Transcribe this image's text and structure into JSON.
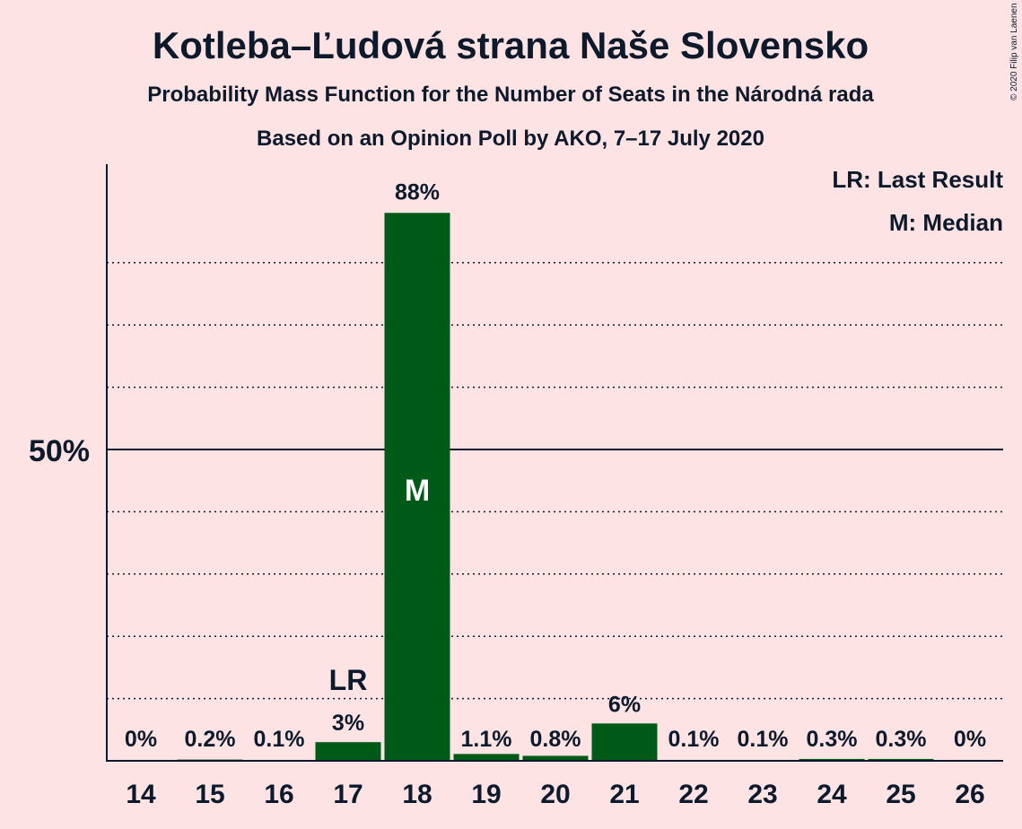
{
  "chart_data": {
    "type": "bar",
    "title": "Kotleba–Ľudová strana Naše Slovensko",
    "subtitle": "Probability Mass Function for the Number of Seats in the Národná rada",
    "subtitle2": "Based on an Opinion Poll by AKO, 7–17 July 2020",
    "copyright": "© 2020 Filip van Laenen",
    "categories": [
      "14",
      "15",
      "16",
      "17",
      "18",
      "19",
      "20",
      "21",
      "22",
      "23",
      "24",
      "25",
      "26"
    ],
    "values": [
      0,
      0.2,
      0.1,
      3,
      88,
      1.1,
      0.8,
      6,
      0.1,
      0.1,
      0.3,
      0.3,
      0
    ],
    "value_labels": [
      "0%",
      "0.2%",
      "0.1%",
      "3%",
      "88%",
      "1.1%",
      "0.8%",
      "6%",
      "0.1%",
      "0.1%",
      "0.3%",
      "0.3%",
      "0%"
    ],
    "ylim": [
      0,
      96
    ],
    "y_major_tick": {
      "value": 50,
      "label": "50%"
    },
    "y_minor_gridlines": [
      10,
      20,
      30,
      40,
      60,
      70,
      80
    ],
    "last_result": {
      "category": "17",
      "label": "LR"
    },
    "median": {
      "category": "18",
      "label": "M"
    },
    "legend": {
      "position": "top-right",
      "entries": [
        "LR: Last Result",
        "M: Median"
      ]
    },
    "colors": {
      "bar": "#005A17",
      "background": "#FDE3E4",
      "text": "#0d1a2b",
      "median_text": "#ffffff"
    }
  }
}
